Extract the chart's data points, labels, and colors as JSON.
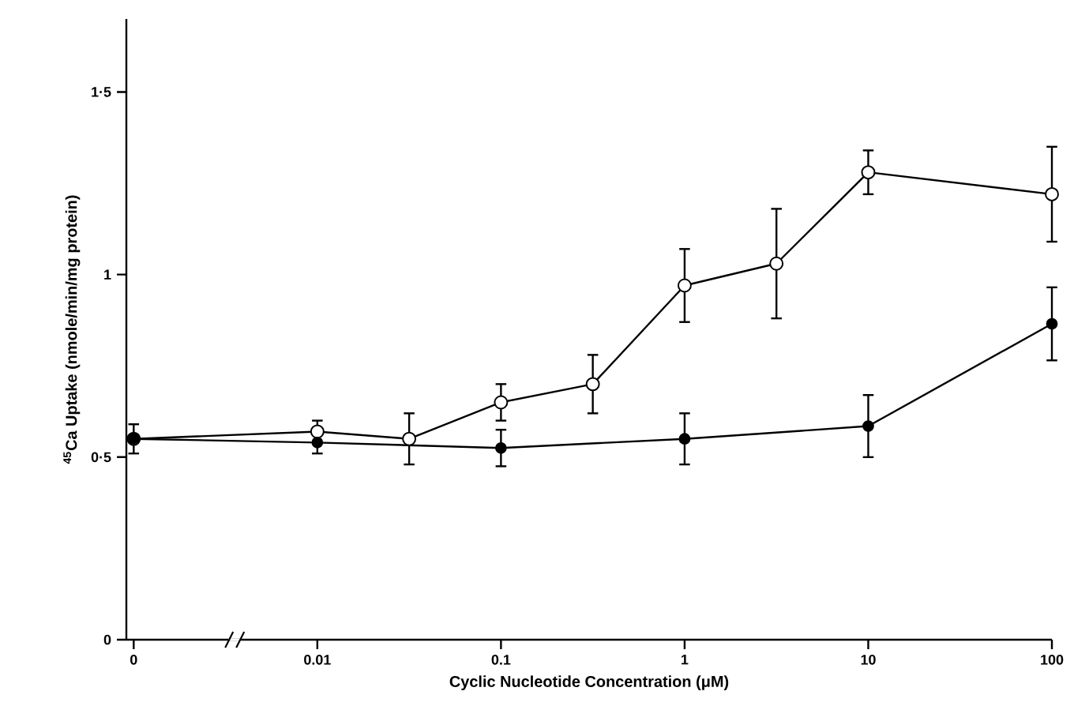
{
  "chart_data": {
    "type": "line",
    "xlabel": "Cyclic Nucleotide Concentration (μM)",
    "ylabel": "$^{45}$Ca Uptake (nmole/min/mg protein)",
    "categories": [
      "0",
      null,
      "0.01",
      null,
      "0.1",
      null,
      "1",
      null,
      "10",
      null,
      "100"
    ],
    "ylim": [
      0,
      1.7
    ],
    "yticks": [
      0,
      {
        "value": 0.5,
        "label": "0·5"
      },
      1,
      {
        "value": 1.5,
        "label": "1·5"
      }
    ],
    "marker": "circle",
    "series": [
      {
        "color": "#000000",
        "values": [
          0.55,
          null,
          0.57,
          0.55,
          0.65,
          0.7,
          0.97,
          1.03,
          1.28,
          null,
          1.22
        ],
        "errors": [
          null,
          null,
          [
            0.57,
            0.6
          ],
          0.07,
          0.05,
          0.08,
          0.1,
          0.15,
          0.06,
          null,
          0.13
        ]
      },
      {
        "color": "#000000",
        "values": [
          0.55,
          null,
          0.54,
          null,
          0.525,
          null,
          0.55,
          null,
          0.585,
          null,
          0.865
        ],
        "errors": [
          0.04,
          null,
          [
            0.51,
            0.54
          ],
          null,
          0.05,
          null,
          0.07,
          null,
          0.085,
          null,
          0.1
        ]
      }
    ]
  }
}
